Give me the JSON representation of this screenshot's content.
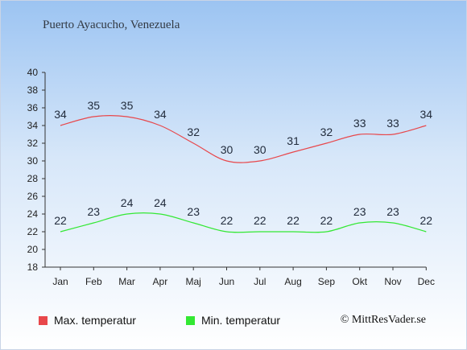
{
  "title": "Puerto Ayacucho, Venezuela",
  "credit": "© MittResVader.se",
  "colors": {
    "max": "#e8474b",
    "min": "#33e833",
    "axis": "#333333",
    "label": "#222c3c"
  },
  "chart_data": {
    "type": "line",
    "categories": [
      "Jan",
      "Feb",
      "Mar",
      "Apr",
      "Maj",
      "Jun",
      "Jul",
      "Aug",
      "Sep",
      "Okt",
      "Nov",
      "Dec"
    ],
    "series": [
      {
        "name": "Max. temperatur",
        "values": [
          34,
          35,
          35,
          34,
          32,
          30,
          30,
          31,
          32,
          33,
          33,
          34
        ]
      },
      {
        "name": "Min. temperatur",
        "values": [
          22,
          23,
          24,
          24,
          23,
          22,
          22,
          22,
          22,
          23,
          23,
          22
        ]
      }
    ],
    "ylim": [
      18,
      40
    ],
    "yticks": [
      18,
      20,
      22,
      24,
      26,
      28,
      30,
      32,
      34,
      36,
      38,
      40
    ],
    "grid": false,
    "legend": "bottom"
  }
}
